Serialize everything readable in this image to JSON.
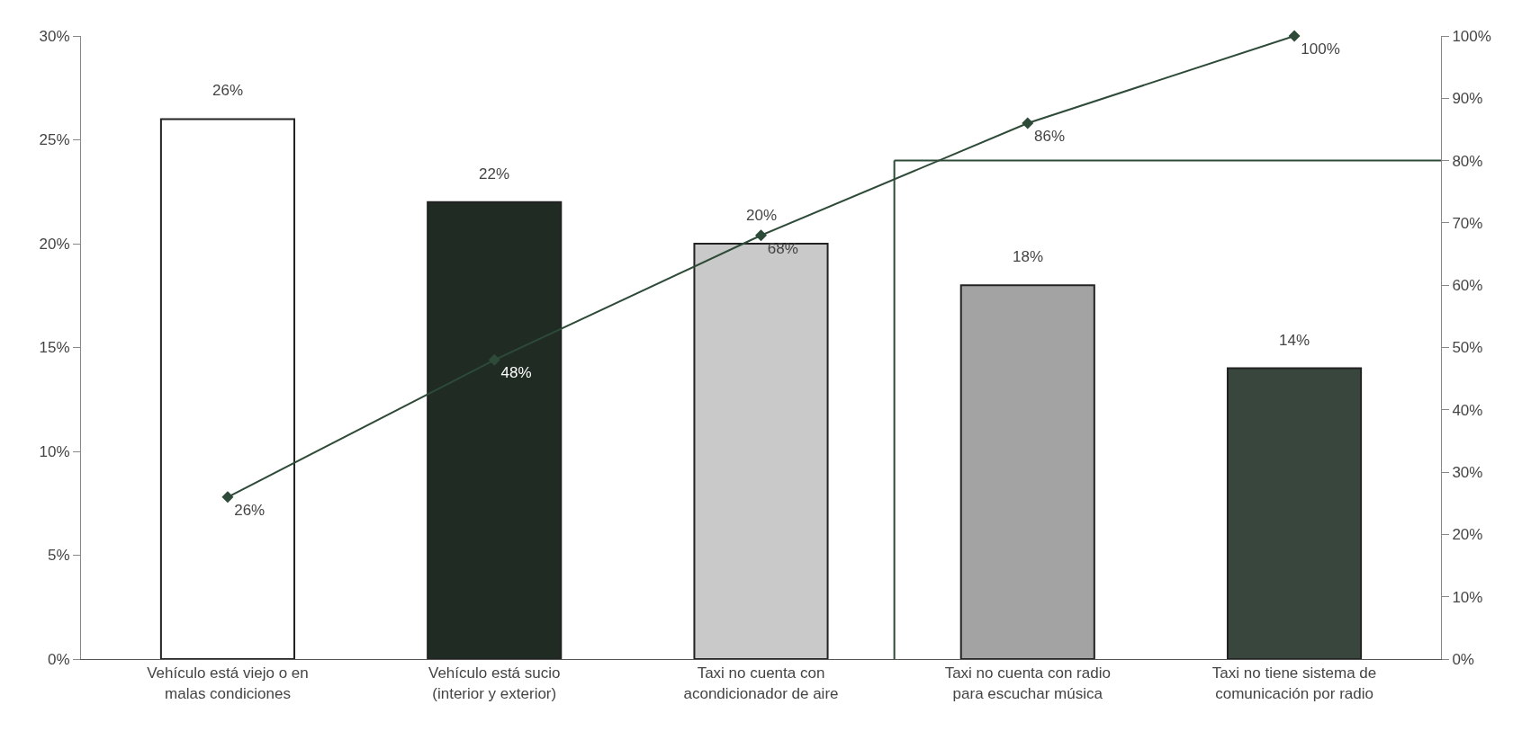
{
  "chart_data": {
    "type": "bar",
    "categories": [
      "Vehículo está viejo o en malas condiciones",
      "Vehículo está sucio (interior y exterior)",
      "Taxi no cuenta con acondicionador de aire",
      "Taxi no cuenta con radio para escuchar música",
      "Taxi no tiene sistema de comunicación por radio"
    ],
    "series": [
      {
        "colors": [
          "#ffffff",
          "#1f2b23",
          "#c9c9c9",
          "#a3a3a3",
          "#38463d"
        ],
        "values": [
          26,
          22,
          20,
          18,
          14
        ],
        "value_labels": [
          "26%",
          "22%",
          "20%",
          "18%",
          "14%"
        ]
      },
      {
        "type": "line",
        "axis": "y2",
        "color": "#2e4a38",
        "marker": "diamond",
        "values": [
          26,
          48,
          68,
          86,
          100
        ],
        "value_labels": [
          "26%",
          "48%",
          "68%",
          "86%",
          "100%"
        ]
      }
    ],
    "ylim": [
      0,
      30
    ],
    "yticks": [
      {
        "value": 0,
        "label": "0%"
      },
      {
        "value": 5,
        "label": "5%"
      },
      {
        "value": 10,
        "label": "10%"
      },
      {
        "value": 15,
        "label": "15%"
      },
      {
        "value": 20,
        "label": "20%"
      },
      {
        "value": 25,
        "label": "25%"
      },
      {
        "value": 30,
        "label": "30%"
      }
    ],
    "y2lim": [
      0,
      100
    ],
    "y2ticks": [
      {
        "value": 0,
        "label": "0%"
      },
      {
        "value": 10,
        "label": "10%"
      },
      {
        "value": 20,
        "label": "20%"
      },
      {
        "value": 30,
        "label": "30%"
      },
      {
        "value": 40,
        "label": "40%"
      },
      {
        "value": 50,
        "label": "50%"
      },
      {
        "value": 60,
        "label": "60%"
      },
      {
        "value": 70,
        "label": "70%"
      },
      {
        "value": 80,
        "label": "80%"
      },
      {
        "value": 90,
        "label": "90%"
      },
      {
        "value": 100,
        "label": "100%"
      }
    ],
    "ref_lines": [
      {
        "axis": "y2",
        "value": 80,
        "color": "#2e4a38"
      }
    ],
    "grid": false
  }
}
